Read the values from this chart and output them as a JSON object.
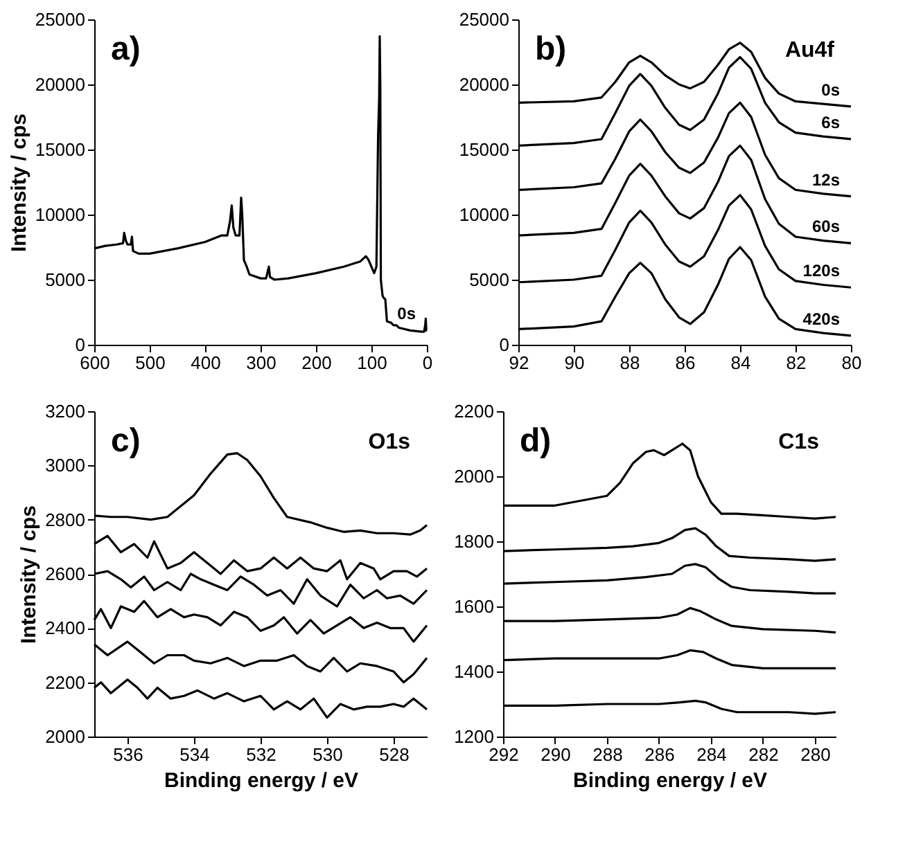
{
  "chart_data": [
    {
      "type": "line",
      "ylabel": "Intensity / cps",
      "xlim": [
        600,
        0
      ],
      "xticks": [
        600,
        500,
        400,
        300,
        200,
        100,
        0
      ],
      "ylim": [
        0,
        25000
      ],
      "yticks": [
        0,
        5000,
        10000,
        15000,
        20000,
        25000
      ],
      "annotations": [
        "a)",
        "0s"
      ],
      "series": [
        {
          "color": "#000000",
          "x": [
            600,
            580,
            560,
            548,
            546,
            543,
            540,
            534,
            532,
            530,
            520,
            500,
            450,
            400,
            370,
            360,
            355,
            352,
            349,
            345,
            338,
            335,
            333,
            330,
            325,
            320,
            300,
            290,
            285,
            283,
            275,
            250,
            200,
            150,
            120,
            110,
            105,
            95,
            91,
            88,
            86,
            85,
            84,
            83,
            80,
            78,
            75,
            72,
            65,
            60,
            55,
            50,
            30,
            10,
            5,
            3,
            2,
            1,
            0
          ],
          "values": [
            7400,
            7600,
            7700,
            7800,
            8600,
            8000,
            7700,
            7700,
            8300,
            7200,
            7000,
            7000,
            7400,
            7900,
            8400,
            8400,
            9500,
            10700,
            9000,
            8400,
            8400,
            11300,
            10000,
            6500,
            6000,
            5400,
            5100,
            5100,
            6000,
            5200,
            5000,
            5100,
            5500,
            6000,
            6400,
            6800,
            6500,
            5500,
            6000,
            16000,
            19000,
            23700,
            20000,
            5000,
            3800,
            3600,
            3500,
            1800,
            1700,
            1500,
            1500,
            1300,
            1100,
            1000,
            1000,
            1500,
            2000,
            1100,
            1100
          ]
        }
      ]
    },
    {
      "type": "line",
      "xlim": [
        92,
        80
      ],
      "xticks": [
        92,
        90,
        88,
        86,
        84,
        82,
        80
      ],
      "ylim": [
        0,
        25000
      ],
      "yticks": [
        0,
        5000,
        10000,
        15000,
        20000,
        25000
      ],
      "annotations": [
        "b)",
        "Au4f",
        "0s",
        "6s",
        "12s",
        "60s",
        "120s",
        "420s"
      ],
      "series": [
        {
          "color": "#000000",
          "x": [
            92,
            90,
            89,
            88.5,
            88,
            87.6,
            87.2,
            86.7,
            86.2,
            85.8,
            85.3,
            84.8,
            84.4,
            84,
            83.6,
            83.1,
            82.6,
            82,
            81,
            80
          ],
          "values": [
            18600,
            18700,
            19000,
            20200,
            21700,
            22200,
            21700,
            20700,
            20000,
            19700,
            20200,
            21500,
            22700,
            23200,
            22500,
            20500,
            19300,
            18700,
            18500,
            18300
          ]
        },
        {
          "color": "#000000",
          "x": [
            92,
            90,
            89,
            88.5,
            88,
            87.6,
            87.2,
            86.7,
            86.2,
            85.8,
            85.3,
            84.8,
            84.4,
            84,
            83.6,
            83.1,
            82.6,
            82,
            81,
            80
          ],
          "values": [
            15300,
            15500,
            15800,
            17800,
            19900,
            20800,
            19900,
            18200,
            16900,
            16500,
            17300,
            19300,
            21300,
            22100,
            21200,
            18600,
            17100,
            16300,
            16000,
            15800
          ]
        },
        {
          "color": "#000000",
          "x": [
            92,
            90,
            89,
            88.5,
            88,
            87.6,
            87.2,
            86.7,
            86.2,
            85.8,
            85.3,
            84.8,
            84.4,
            84,
            83.6,
            83.1,
            82.6,
            82,
            81,
            80
          ],
          "values": [
            11900,
            12100,
            12400,
            14300,
            16400,
            17300,
            16400,
            14800,
            13600,
            13200,
            14000,
            15900,
            17800,
            18600,
            17500,
            14600,
            12800,
            11900,
            11600,
            11400
          ]
        },
        {
          "color": "#000000",
          "x": [
            92,
            90,
            89,
            88.5,
            88,
            87.6,
            87.2,
            86.7,
            86.2,
            85.8,
            85.3,
            84.8,
            84.4,
            84,
            83.6,
            83.1,
            82.6,
            82,
            81,
            80
          ],
          "values": [
            8400,
            8600,
            8900,
            10900,
            13000,
            13900,
            13000,
            11400,
            10100,
            9700,
            10500,
            12500,
            14500,
            15300,
            14200,
            11200,
            9300,
            8300,
            8000,
            7800
          ]
        },
        {
          "color": "#000000",
          "x": [
            92,
            90,
            89,
            88.5,
            88,
            87.6,
            87.2,
            86.7,
            86.2,
            85.8,
            85.3,
            84.8,
            84.4,
            84,
            83.6,
            83.1,
            82.6,
            82,
            81,
            80
          ],
          "values": [
            4800,
            5000,
            5300,
            7300,
            9400,
            10300,
            9400,
            7700,
            6400,
            6000,
            6800,
            8800,
            10700,
            11500,
            10400,
            7600,
            5800,
            4900,
            4600,
            4400
          ]
        },
        {
          "color": "#000000",
          "x": [
            92,
            90,
            89,
            88.5,
            88,
            87.6,
            87.2,
            86.7,
            86.2,
            85.8,
            85.3,
            84.8,
            84.4,
            84,
            83.6,
            83.1,
            82.6,
            82,
            81,
            80
          ],
          "values": [
            1200,
            1400,
            1800,
            3700,
            5500,
            6300,
            5500,
            3500,
            2100,
            1600,
            2500,
            4600,
            6600,
            7500,
            6500,
            3700,
            2000,
            1200,
            900,
            700
          ]
        }
      ]
    },
    {
      "type": "line",
      "xlabel": "Binding energy / eV",
      "ylabel": "Intensity / cps",
      "xlim": [
        537,
        527
      ],
      "xticks": [
        536,
        534,
        532,
        530,
        528
      ],
      "ylim": [
        2000,
        3200
      ],
      "yticks": [
        2000,
        2200,
        2400,
        2600,
        2800,
        3000,
        3200
      ],
      "annotations": [
        "c)",
        "O1s"
      ],
      "series": [
        {
          "color": "#000000",
          "x": [
            537,
            536.5,
            536,
            535.3,
            534.8,
            534.5,
            534,
            533.5,
            533,
            532.7,
            532.4,
            532,
            531.6,
            531.2,
            530.5,
            530,
            529.5,
            529,
            528.5,
            528,
            527.5,
            527.2,
            527
          ],
          "values": [
            2815,
            2810,
            2810,
            2800,
            2810,
            2840,
            2890,
            2970,
            3040,
            3045,
            3020,
            2960,
            2880,
            2810,
            2790,
            2770,
            2755,
            2760,
            2750,
            2750,
            2745,
            2760,
            2780
          ]
        },
        {
          "color": "#000000",
          "x": [
            537,
            536.6,
            536.2,
            535.8,
            535.4,
            535.2,
            534.8,
            534.4,
            534,
            533.6,
            533.2,
            532.8,
            532.4,
            532,
            531.6,
            531.2,
            530.8,
            530.4,
            530,
            529.6,
            529.4,
            529,
            528.6,
            528.4,
            528,
            527.6,
            527.3,
            527
          ],
          "values": [
            2710,
            2740,
            2680,
            2710,
            2660,
            2720,
            2620,
            2640,
            2680,
            2640,
            2600,
            2650,
            2610,
            2620,
            2660,
            2620,
            2660,
            2620,
            2610,
            2650,
            2580,
            2640,
            2620,
            2580,
            2610,
            2610,
            2590,
            2620
          ]
        },
        {
          "color": "#000000",
          "x": [
            537,
            536.6,
            536.2,
            535.9,
            535.5,
            535.2,
            534.8,
            534.4,
            534.1,
            533.8,
            533.4,
            533,
            532.6,
            532.2,
            531.8,
            531.4,
            531,
            530.6,
            530.2,
            529.7,
            529.3,
            528.9,
            528.5,
            528.2,
            527.8,
            527.4,
            527
          ],
          "values": [
            2600,
            2610,
            2580,
            2550,
            2590,
            2540,
            2570,
            2540,
            2600,
            2580,
            2560,
            2540,
            2590,
            2560,
            2520,
            2540,
            2490,
            2580,
            2520,
            2480,
            2560,
            2510,
            2540,
            2510,
            2520,
            2490,
            2540
          ]
        },
        {
          "color": "#000000",
          "x": [
            537,
            536.8,
            536.5,
            536.2,
            535.8,
            535.5,
            535.1,
            534.7,
            534.3,
            534,
            533.6,
            533.2,
            532.8,
            532.4,
            532,
            531.6,
            531.3,
            530.9,
            530.5,
            530.1,
            529.7,
            529.3,
            528.9,
            528.5,
            528.1,
            527.7,
            527.4,
            527
          ],
          "values": [
            2430,
            2470,
            2400,
            2480,
            2460,
            2500,
            2440,
            2470,
            2440,
            2450,
            2440,
            2410,
            2460,
            2440,
            2390,
            2410,
            2440,
            2380,
            2430,
            2380,
            2410,
            2440,
            2400,
            2420,
            2400,
            2400,
            2350,
            2410
          ]
        },
        {
          "color": "#000000",
          "x": [
            537,
            536.6,
            536,
            535.6,
            535.2,
            534.8,
            534.3,
            534,
            533.5,
            533,
            532.5,
            532,
            531.5,
            531,
            530.6,
            530.2,
            529.8,
            529.4,
            529,
            528.5,
            528,
            527.7,
            527.4,
            527
          ],
          "values": [
            2340,
            2300,
            2350,
            2310,
            2270,
            2300,
            2300,
            2280,
            2270,
            2290,
            2260,
            2280,
            2280,
            2300,
            2260,
            2240,
            2290,
            2240,
            2270,
            2260,
            2240,
            2200,
            2230,
            2290
          ]
        },
        {
          "color": "#000000",
          "x": [
            537,
            536.8,
            536.5,
            536,
            535.7,
            535.4,
            535.1,
            534.7,
            534.3,
            533.9,
            533.4,
            533,
            532.5,
            532,
            531.6,
            531.2,
            530.8,
            530.4,
            530,
            529.6,
            529.2,
            528.8,
            528.4,
            528,
            527.7,
            527.4,
            527
          ],
          "values": [
            2180,
            2200,
            2160,
            2210,
            2180,
            2140,
            2180,
            2140,
            2150,
            2170,
            2140,
            2160,
            2130,
            2150,
            2100,
            2130,
            2100,
            2140,
            2070,
            2120,
            2100,
            2110,
            2110,
            2120,
            2110,
            2140,
            2100
          ]
        }
      ]
    },
    {
      "type": "line",
      "xlabel": "Binding energy / eV",
      "xlim": [
        292,
        279.2
      ],
      "xticks": [
        292,
        290,
        288,
        286,
        284,
        282,
        280
      ],
      "ylim": [
        1200,
        2200
      ],
      "yticks": [
        1200,
        1400,
        1600,
        1800,
        2000,
        2200
      ],
      "annotations": [
        "d)",
        "C1s"
      ],
      "series": [
        {
          "color": "#000000",
          "x": [
            292,
            290,
            289,
            288,
            287.5,
            287,
            286.5,
            286.2,
            285.8,
            285.5,
            285.1,
            284.8,
            284.5,
            284,
            283.6,
            283,
            282,
            281,
            280,
            279.2
          ],
          "values": [
            1910,
            1910,
            1925,
            1940,
            1980,
            2040,
            2075,
            2080,
            2065,
            2080,
            2100,
            2080,
            2000,
            1920,
            1885,
            1885,
            1880,
            1875,
            1870,
            1875
          ]
        },
        {
          "color": "#000000",
          "x": [
            292,
            290,
            288,
            287,
            286,
            285.5,
            285,
            284.6,
            284.2,
            283.8,
            283.3,
            282.5,
            281,
            280,
            279.2
          ],
          "values": [
            1770,
            1775,
            1780,
            1785,
            1795,
            1810,
            1835,
            1840,
            1820,
            1785,
            1755,
            1750,
            1745,
            1740,
            1745
          ]
        },
        {
          "color": "#000000",
          "x": [
            292,
            290,
            288,
            286.5,
            285.5,
            285,
            284.6,
            284.2,
            283.7,
            283.2,
            282.5,
            281,
            280,
            279.2
          ],
          "values": [
            1670,
            1675,
            1680,
            1690,
            1700,
            1725,
            1730,
            1720,
            1685,
            1660,
            1650,
            1645,
            1640,
            1640
          ]
        },
        {
          "color": "#000000",
          "x": [
            292,
            290,
            288,
            286,
            285.3,
            284.8,
            284.4,
            283.8,
            283.2,
            282,
            280,
            279.2
          ],
          "values": [
            1555,
            1555,
            1560,
            1565,
            1575,
            1595,
            1585,
            1560,
            1540,
            1530,
            1525,
            1520
          ]
        },
        {
          "color": "#000000",
          "x": [
            292,
            290,
            288,
            286,
            285.3,
            284.8,
            284.3,
            283.8,
            283.2,
            282,
            280,
            279.2
          ],
          "values": [
            1435,
            1440,
            1440,
            1440,
            1450,
            1465,
            1460,
            1440,
            1420,
            1410,
            1410,
            1410
          ]
        },
        {
          "color": "#000000",
          "x": [
            292,
            290,
            288,
            286,
            285.2,
            284.6,
            284.2,
            283.6,
            283,
            281,
            280,
            279.2
          ],
          "values": [
            1295,
            1295,
            1300,
            1300,
            1305,
            1310,
            1305,
            1285,
            1275,
            1275,
            1270,
            1275
          ]
        }
      ]
    }
  ]
}
